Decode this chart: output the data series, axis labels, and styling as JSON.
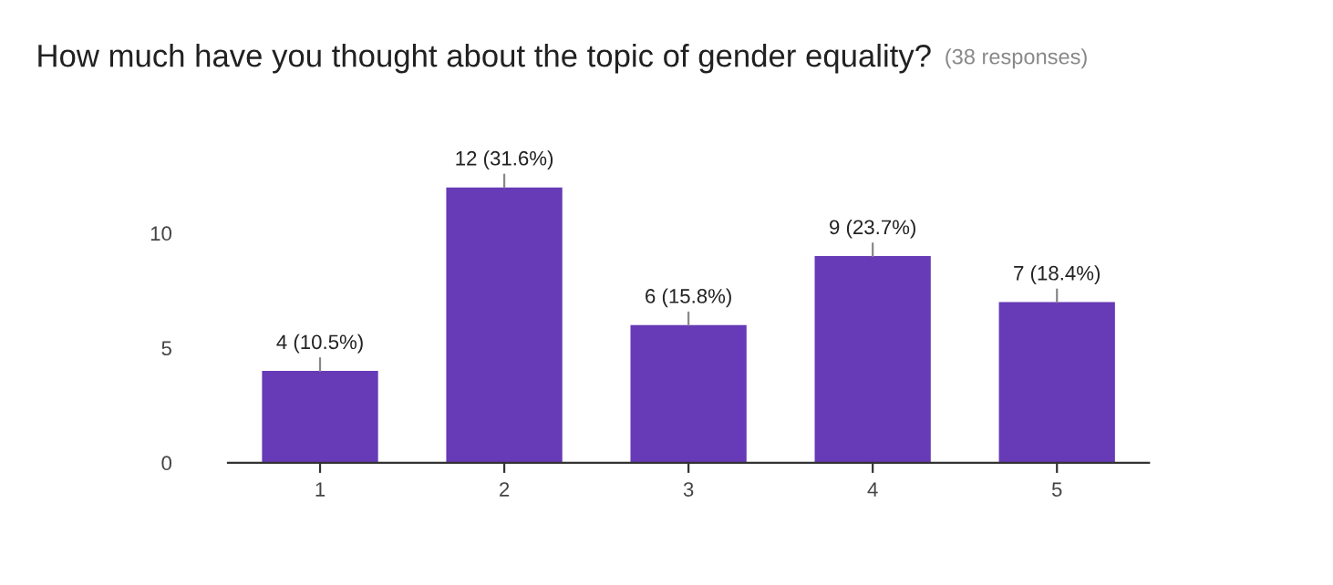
{
  "chart_data": {
    "type": "bar",
    "title": "How much have you thought about the topic of gender equality?",
    "subtitle": "(38 responses)",
    "categories": [
      "1",
      "2",
      "3",
      "4",
      "5"
    ],
    "values": [
      4,
      12,
      6,
      9,
      7
    ],
    "value_labels": [
      "4 (10.5%)",
      "12 (31.6%)",
      "6 (15.8%)",
      "9 (23.7%)",
      "7 (18.4%)"
    ],
    "color": "#673ab7",
    "ylim": [
      0,
      12
    ],
    "yticks": [
      0,
      5,
      10
    ],
    "grid": false,
    "legend": false
  }
}
